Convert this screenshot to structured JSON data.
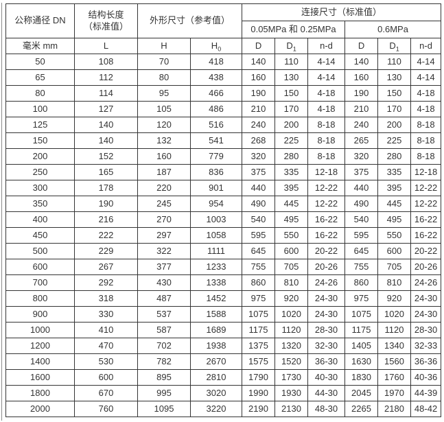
{
  "page": {
    "background": "#ffffff",
    "border_color": "#333333",
    "text_color": "#333333"
  },
  "table": {
    "header": {
      "dn": "公称通径 DN",
      "length_line1": "结构长度",
      "length_line2": "（标准值）",
      "overall_dims": "外形尺寸（参考值）",
      "connection_dims": "连接尺寸（标准值）",
      "pressure_low": "0.05MPa 和 0.25MPa",
      "pressure_high": "0.6MPa"
    },
    "units": [
      {
        "base": "毫米 mm",
        "sub": ""
      },
      {
        "base": "L",
        "sub": ""
      },
      {
        "base": "H",
        "sub": ""
      },
      {
        "base": "H",
        "sub": "0"
      },
      {
        "base": "D",
        "sub": ""
      },
      {
        "base": "D",
        "sub": "1"
      },
      {
        "base": "n-d",
        "sub": ""
      },
      {
        "base": "D",
        "sub": ""
      },
      {
        "base": "D",
        "sub": "1"
      },
      {
        "base": "n-d",
        "sub": ""
      }
    ],
    "rows": [
      [
        "50",
        "108",
        "70",
        "418",
        "140",
        "110",
        "4-14",
        "140",
        "110",
        "4-14"
      ],
      [
        "65",
        "112",
        "80",
        "438",
        "160",
        "130",
        "4-14",
        "160",
        "130",
        "4-14"
      ],
      [
        "80",
        "114",
        "95",
        "466",
        "190",
        "150",
        "4-18",
        "190",
        "150",
        "4-18"
      ],
      [
        "100",
        "127",
        "105",
        "486",
        "210",
        "170",
        "4-18",
        "210",
        "170",
        "4-18"
      ],
      [
        "125",
        "140",
        "120",
        "516",
        "240",
        "200",
        "8-18",
        "240",
        "200",
        "8-18"
      ],
      [
        "150",
        "140",
        "132",
        "541",
        "268",
        "225",
        "8-18",
        "265",
        "225",
        "8-18"
      ],
      [
        "200",
        "152",
        "160",
        "779",
        "320",
        "280",
        "8-18",
        "320",
        "280",
        "8-18"
      ],
      [
        "250",
        "165",
        "187",
        "836",
        "375",
        "335",
        "12-18",
        "375",
        "335",
        "12-18"
      ],
      [
        "300",
        "178",
        "220",
        "901",
        "440",
        "395",
        "12-22",
        "440",
        "395",
        "12-22"
      ],
      [
        "350",
        "190",
        "245",
        "954",
        "490",
        "445",
        "12-22",
        "490",
        "445",
        "12-22"
      ],
      [
        "400",
        "216",
        "270",
        "1003",
        "540",
        "495",
        "16-22",
        "540",
        "495",
        "16-22"
      ],
      [
        "450",
        "222",
        "297",
        "1058",
        "595",
        "550",
        "16-22",
        "595",
        "550",
        "16-22"
      ],
      [
        "500",
        "229",
        "322",
        "1111",
        "645",
        "600",
        "20-22",
        "645",
        "600",
        "20-22"
      ],
      [
        "600",
        "267",
        "377",
        "1233",
        "755",
        "705",
        "20-26",
        "755",
        "705",
        "20-26"
      ],
      [
        "700",
        "292",
        "430",
        "1338",
        "860",
        "810",
        "24-26",
        "860",
        "810",
        "24-26"
      ],
      [
        "800",
        "318",
        "487",
        "1452",
        "975",
        "920",
        "24-30",
        "975",
        "920",
        "24-30"
      ],
      [
        "900",
        "330",
        "537",
        "1588",
        "1075",
        "1020",
        "24-30",
        "1075",
        "1020",
        "24-30"
      ],
      [
        "1000",
        "410",
        "587",
        "1689",
        "1175",
        "1120",
        "28-30",
        "1175",
        "1120",
        "28-30"
      ],
      [
        "1200",
        "470",
        "702",
        "1938",
        "1375",
        "1320",
        "32-30",
        "1405",
        "1340",
        "32-33"
      ],
      [
        "1400",
        "530",
        "782",
        "2670",
        "1575",
        "1520",
        "36-30",
        "1630",
        "1560",
        "36-36"
      ],
      [
        "1600",
        "600",
        "895",
        "2810",
        "1790",
        "1730",
        "40-30",
        "1830",
        "1760",
        "40-36"
      ],
      [
        "1800",
        "670",
        "995",
        "3020",
        "1990",
        "1930",
        "44-30",
        "2045",
        "1970",
        "44-39"
      ],
      [
        "2000",
        "760",
        "1095",
        "3220",
        "2190",
        "2130",
        "48-30",
        "2265",
        "2180",
        "48-42"
      ]
    ]
  }
}
